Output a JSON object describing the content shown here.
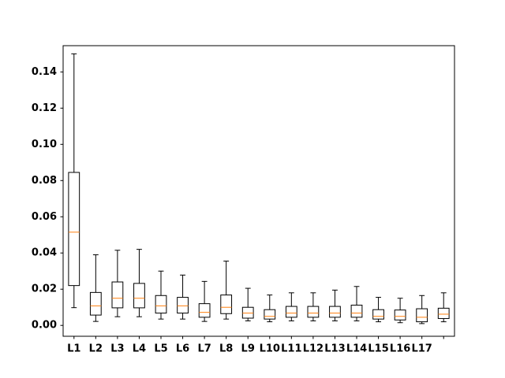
{
  "chart_data": {
    "type": "boxplot",
    "title": "",
    "xlabel": "",
    "ylabel": "",
    "ylim": [
      -0.006,
      0.1545
    ],
    "yticks": [
      "0.00",
      "0.02",
      "0.04",
      "0.06",
      "0.08",
      "0.10",
      "0.12",
      "0.14"
    ],
    "categories": [
      "L1",
      "L2",
      "L3",
      "L4",
      "L5",
      "L6",
      "L7",
      "L8",
      "L9",
      "L10",
      "L11",
      "L12",
      "L13",
      "L14",
      "L15",
      "L16",
      "L17"
    ],
    "boxes": [
      {
        "label": "L1",
        "whislo": 0.0098,
        "q1": 0.022,
        "med": 0.0515,
        "q3": 0.0845,
        "whishi": 0.15
      },
      {
        "label": "L2",
        "whislo": 0.0022,
        "q1": 0.0057,
        "med": 0.0108,
        "q3": 0.0182,
        "whishi": 0.039
      },
      {
        "label": "L3",
        "whislo": 0.0048,
        "q1": 0.0097,
        "med": 0.015,
        "q3": 0.024,
        "whishi": 0.0415
      },
      {
        "label": "L4",
        "whislo": 0.0048,
        "q1": 0.0097,
        "med": 0.015,
        "q3": 0.0232,
        "whishi": 0.042
      },
      {
        "label": "L5",
        "whislo": 0.0035,
        "q1": 0.0068,
        "med": 0.0108,
        "q3": 0.0165,
        "whishi": 0.03
      },
      {
        "label": "L6",
        "whislo": 0.0035,
        "q1": 0.0068,
        "med": 0.0108,
        "q3": 0.0155,
        "whishi": 0.0278
      },
      {
        "label": "L7",
        "whislo": 0.0022,
        "q1": 0.0045,
        "med": 0.0072,
        "q3": 0.012,
        "whishi": 0.0243
      },
      {
        "label": "L8",
        "whislo": 0.0035,
        "q1": 0.0065,
        "med": 0.01,
        "q3": 0.0168,
        "whishi": 0.0355
      },
      {
        "label": "L9",
        "whislo": 0.0025,
        "q1": 0.004,
        "med": 0.0068,
        "q3": 0.01,
        "whishi": 0.0205
      },
      {
        "label": "L10",
        "whislo": 0.002,
        "q1": 0.0035,
        "med": 0.005,
        "q3": 0.0087,
        "whishi": 0.0168
      },
      {
        "label": "L11",
        "whislo": 0.0025,
        "q1": 0.0045,
        "med": 0.0068,
        "q3": 0.0105,
        "whishi": 0.018
      },
      {
        "label": "L12",
        "whislo": 0.0025,
        "q1": 0.0045,
        "med": 0.0068,
        "q3": 0.0105,
        "whishi": 0.018
      },
      {
        "label": "L13",
        "whislo": 0.0025,
        "q1": 0.0045,
        "med": 0.0068,
        "q3": 0.0105,
        "whishi": 0.0195
      },
      {
        "label": "L14",
        "whislo": 0.0025,
        "q1": 0.0045,
        "med": 0.0068,
        "q3": 0.0112,
        "whishi": 0.0215
      },
      {
        "label": "L15",
        "whislo": 0.002,
        "q1": 0.0035,
        "med": 0.005,
        "q3": 0.0087,
        "whishi": 0.0155
      },
      {
        "label": "L16",
        "whislo": 0.0015,
        "q1": 0.003,
        "med": 0.005,
        "q3": 0.0085,
        "whishi": 0.015
      },
      {
        "label": "L17",
        "whislo": 0.001,
        "q1": 0.002,
        "med": 0.0045,
        "q3": 0.0092,
        "whishi": 0.0165
      },
      {
        "label": "",
        "whislo": 0.002,
        "q1": 0.0038,
        "med": 0.0062,
        "q3": 0.0095,
        "whishi": 0.018
      }
    ],
    "grid": false,
    "legend": "none",
    "colors": {
      "box": "#000000",
      "median": "#ff7f0e",
      "background": "#ffffff"
    }
  }
}
